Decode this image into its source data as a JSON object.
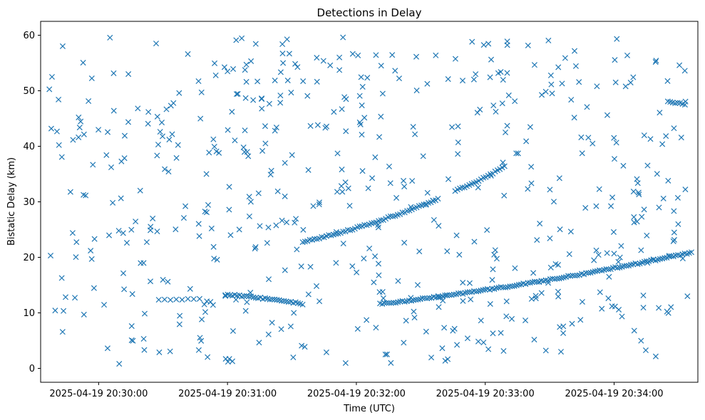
{
  "chart_data": {
    "type": "scatter",
    "title": "Detections in Delay",
    "xlabel": "Time (UTC)",
    "ylabel": "Bistatic Delay (km)",
    "x_axis_type": "time",
    "xlim": [
      "2025-04-19 20:29:33",
      "2025-04-19 20:34:39"
    ],
    "ylim": [
      -2.5,
      62.5
    ],
    "grid": false,
    "legend": "none",
    "marker": "x",
    "colors": {
      "series": "#1f77b4"
    },
    "x_ticks": [
      {
        "t": "2025-04-19 20:30:00",
        "label": "2025-04-19 20:30:00"
      },
      {
        "t": "2025-04-19 20:31:00",
        "label": "2025-04-19 20:31:00"
      },
      {
        "t": "2025-04-19 20:32:00",
        "label": "2025-04-19 20:32:00"
      },
      {
        "t": "2025-04-19 20:33:00",
        "label": "2025-04-19 20:33:00"
      },
      {
        "t": "2025-04-19 20:34:00",
        "label": "2025-04-19 20:34:00"
      }
    ],
    "y_ticks": [
      0,
      10,
      20,
      30,
      40,
      50,
      60
    ],
    "tracks": [
      {
        "start": "2025-04-19 20:30:28",
        "end": "2025-04-19 20:30:47",
        "delay_start": 12.4,
        "delay_end": 12.4,
        "count": 8
      },
      {
        "start": "2025-04-19 20:30:59",
        "end": "2025-04-19 20:31:35",
        "delay_start": 13.3,
        "delay_end": 11.6,
        "count": 34
      },
      {
        "start": "2025-04-19 20:31:35",
        "end": "2025-04-19 20:32:38",
        "delay_start": 22.8,
        "delay_end": 30.5,
        "count": 58
      },
      {
        "start": "2025-04-19 20:32:46",
        "end": "2025-04-19 20:33:09",
        "delay_start": 32.0,
        "delay_end": 36.5,
        "count": 22
      },
      {
        "start": "2025-04-19 20:32:11",
        "end": "2025-04-19 20:34:36",
        "delay_start": 11.6,
        "delay_end": 20.9,
        "count": 140
      },
      {
        "start": "2025-04-19 20:34:25",
        "end": "2025-04-19 20:34:33",
        "delay_start": 48.0,
        "delay_end": 47.6,
        "count": 8
      }
    ],
    "clutter": {
      "count": 560,
      "delay_range": [
        0.8,
        59.8
      ],
      "time_range": [
        "2025-04-19 20:29:37",
        "2025-04-19 20:34:36"
      ]
    }
  }
}
